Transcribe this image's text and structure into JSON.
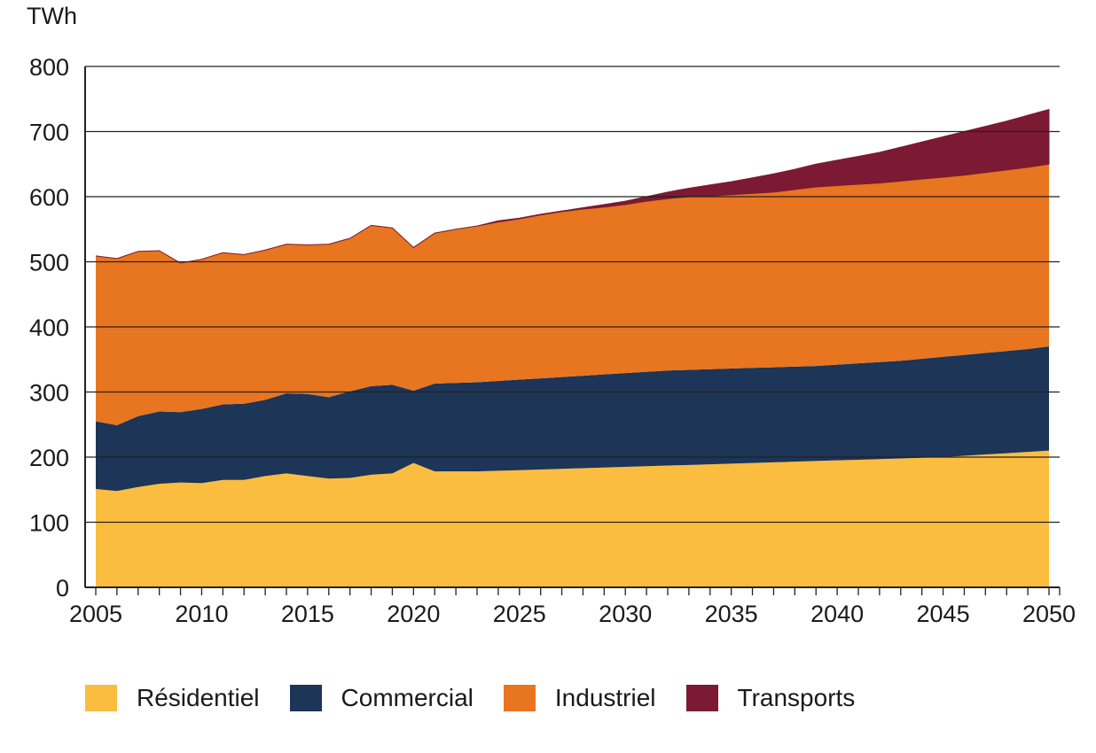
{
  "chart_data": {
    "type": "area",
    "stacked": true,
    "ylabel": "TWh",
    "ylim": [
      0,
      800
    ],
    "yticks": [
      0,
      100,
      200,
      300,
      400,
      500,
      600,
      700,
      800
    ],
    "xlim": [
      2005,
      2050
    ],
    "xticks": [
      2005,
      2010,
      2015,
      2020,
      2025,
      2030,
      2035,
      2040,
      2045,
      2050
    ],
    "grid": "horizontal",
    "legend_position": "bottom",
    "x": [
      2005,
      2006,
      2007,
      2008,
      2009,
      2010,
      2011,
      2012,
      2013,
      2014,
      2015,
      2016,
      2017,
      2018,
      2019,
      2020,
      2021,
      2022,
      2023,
      2024,
      2025,
      2026,
      2027,
      2028,
      2029,
      2030,
      2031,
      2032,
      2033,
      2034,
      2035,
      2036,
      2037,
      2038,
      2039,
      2040,
      2041,
      2042,
      2043,
      2044,
      2045,
      2046,
      2047,
      2048,
      2049,
      2050
    ],
    "series": [
      {
        "name": "Résidentiel",
        "color": "#FBBD40",
        "values": [
          151,
          148,
          154,
          159,
          161,
          160,
          165,
          165,
          171,
          175,
          171,
          167,
          168,
          173,
          175,
          191,
          178,
          178,
          178,
          179,
          180,
          181,
          182,
          183,
          184,
          185,
          186,
          187,
          188,
          189,
          190,
          191,
          192,
          193,
          194,
          195,
          196,
          197,
          198,
          199,
          200,
          202,
          204,
          206,
          208,
          210
        ]
      },
      {
        "name": "Commercial",
        "color": "#1D3557",
        "values": [
          104,
          101,
          109,
          111,
          108,
          114,
          116,
          117,
          117,
          123,
          126,
          125,
          133,
          136,
          136,
          111,
          135,
          136,
          137,
          138,
          139,
          140,
          141,
          142,
          143,
          144,
          145,
          146,
          146,
          146,
          146,
          146,
          146,
          146,
          146,
          147,
          148,
          149,
          150,
          152,
          154,
          155,
          156,
          157,
          158,
          160
        ]
      },
      {
        "name": "Industriel",
        "color": "#E8751F",
        "values": [
          254,
          256,
          253,
          247,
          229,
          230,
          233,
          229,
          230,
          229,
          229,
          235,
          235,
          247,
          241,
          220,
          231,
          236,
          240,
          244,
          247,
          251,
          254,
          256,
          257,
          259,
          262,
          264,
          266,
          266,
          267,
          268,
          269,
          272,
          275,
          275,
          275,
          275,
          276,
          276,
          276,
          276,
          277,
          278,
          279,
          280
        ]
      },
      {
        "name": "Transports",
        "color": "#7B1A32",
        "values": [
          0,
          0,
          0,
          0,
          0,
          0,
          0,
          0,
          0,
          0,
          0,
          0,
          0,
          0,
          0,
          0,
          0,
          0,
          0,
          2,
          1,
          1,
          1,
          2,
          4,
          5,
          7,
          10,
          13,
          17,
          20,
          24,
          28,
          31,
          35,
          39,
          43,
          47,
          52,
          57,
          62,
          67,
          71,
          75,
          80,
          84
        ]
      }
    ]
  }
}
